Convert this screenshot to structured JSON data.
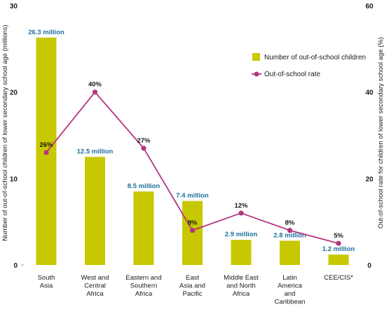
{
  "chart_data": {
    "type": "bar",
    "categories": [
      [
        "South",
        "Asia"
      ],
      [
        "West and",
        "Central",
        "Africa"
      ],
      [
        "Eastern and",
        "Southern",
        "Africa"
      ],
      [
        "East",
        "Asia and",
        "Pacific"
      ],
      [
        "Middle East",
        "and North",
        "Africa"
      ],
      [
        "Latin",
        "America",
        "and",
        "Caribbean"
      ],
      [
        "CEE/CIS*"
      ]
    ],
    "series": [
      {
        "name": "Number of out-of-school children",
        "type": "bar",
        "axis": "left",
        "values": [
          26.3,
          12.5,
          8.5,
          7.4,
          2.9,
          2.8,
          1.2
        ],
        "labels": [
          "26.3 million",
          "12.5 million",
          "8.5 million",
          "7.4 million",
          "2.9 million",
          "2.8 million",
          "1.2 million"
        ]
      },
      {
        "name": "Out-of-school rate",
        "type": "line",
        "axis": "right",
        "values": [
          26,
          40,
          27,
          8,
          12,
          8,
          5
        ],
        "labels": [
          "26%",
          "40%",
          "27%",
          "8%",
          "12%",
          "8%",
          "5%"
        ]
      }
    ],
    "ylabel": "Number of out-of-school children of lower secondary school age (millions)",
    "y2label": "Out-of-school rate for children of lower secondary school age (%)",
    "ylim": [
      0,
      30
    ],
    "y2lim": [
      0,
      60
    ],
    "yticks": [
      "0",
      "10",
      "20",
      "30"
    ],
    "y2ticks": [
      "0",
      "20",
      "40",
      "60"
    ],
    "legend_position": "top-right",
    "grid": false,
    "colors": {
      "bar": "#c8c800",
      "line": "#b4357e",
      "bar_label": "#1f6f9c",
      "text": "#1a1a1a"
    }
  }
}
